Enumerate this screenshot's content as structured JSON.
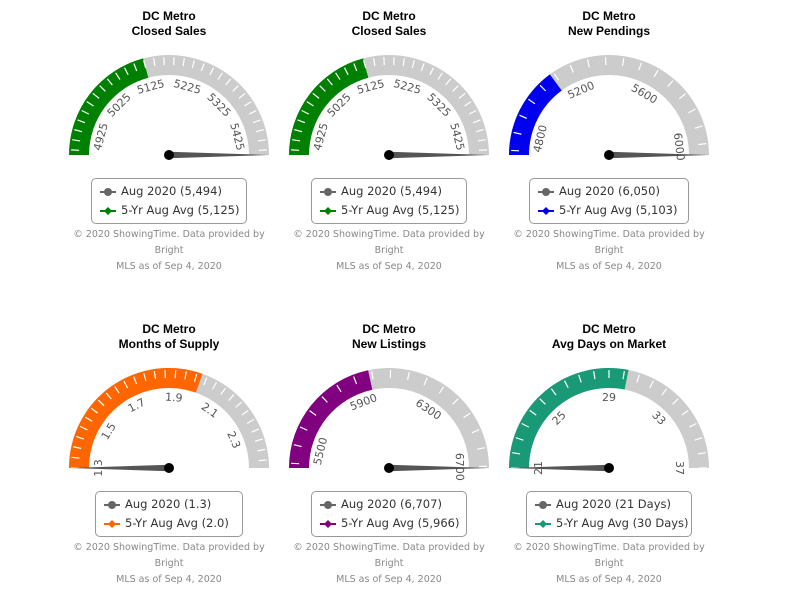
{
  "credit": {
    "line1": "© 2020 ShowingTime. Data provided by Bright",
    "line2": "MLS as of Sep 4, 2020"
  },
  "chart_data": [
    {
      "type": "gauge",
      "title_line1": "DC Metro",
      "title_line2": "Closed Sales",
      "min": 4875,
      "max": 5475,
      "ticks": [
        "4925",
        "5025",
        "5125",
        "5225",
        "5325",
        "5425"
      ],
      "tick_values": [
        4925,
        5025,
        5125,
        5225,
        5325,
        5425
      ],
      "needle_value": 5494,
      "band_value": 5125,
      "band_color": "#008000",
      "legend": [
        "Aug 2020 (5,494)",
        "5-Yr Aug Avg (5,125)"
      ]
    },
    {
      "type": "gauge",
      "title_line1": "DC Metro",
      "title_line2": "Closed Sales",
      "min": 4875,
      "max": 5475,
      "ticks": [
        "4925",
        "5025",
        "5125",
        "5225",
        "5325",
        "5425"
      ],
      "tick_values": [
        4925,
        5025,
        5125,
        5225,
        5325,
        5425
      ],
      "needle_value": 5494,
      "band_value": 5125,
      "band_color": "#008000",
      "legend": [
        "Aug 2020 (5,494)",
        "5-Yr Aug Avg (5,125)"
      ]
    },
    {
      "type": "gauge",
      "title_line1": "DC Metro",
      "title_line2": "New Pendings",
      "min": 4700,
      "max": 6050,
      "ticks": [
        "4800",
        "5200",
        "5600",
        "6000"
      ],
      "tick_values": [
        4800,
        5200,
        5600,
        6000
      ],
      "needle_value": 6050,
      "band_value": 5103,
      "band_color": "#0000ee",
      "legend": [
        "Aug 2020 (6,050)",
        "5-Yr Aug Avg (5,103)"
      ]
    },
    {
      "type": "gauge",
      "title_line1": "DC Metro",
      "title_line2": "Months of Supply",
      "min": 1.3,
      "max": 2.45,
      "ticks": [
        "1.3",
        "1.5",
        "1.7",
        "1.9",
        "2.1",
        "2.3"
      ],
      "tick_values": [
        1.3,
        1.5,
        1.7,
        1.9,
        2.1,
        2.3
      ],
      "needle_value": 1.3,
      "band_value": 2.0,
      "band_color": "#ff6600",
      "legend": [
        "Aug 2020 (1.3)",
        "5-Yr Aug Avg (2.0)"
      ]
    },
    {
      "type": "gauge",
      "title_line1": "DC Metro",
      "title_line2": "New Listings",
      "min": 5400,
      "max": 6707,
      "ticks": [
        "5500",
        "5900",
        "6300",
        "6700"
      ],
      "tick_values": [
        5500,
        5900,
        6300,
        6700
      ],
      "needle_value": 6707,
      "band_value": 5966,
      "band_color": "#800080",
      "legend": [
        "Aug 2020 (6,707)",
        "5-Yr Aug Avg (5,966)"
      ]
    },
    {
      "type": "gauge",
      "title_line1": "DC Metro",
      "title_line2": "Avg Days on Market",
      "min": 21,
      "max": 37,
      "ticks": [
        "21",
        "25",
        "29",
        "33",
        "37"
      ],
      "tick_values": [
        21,
        25,
        29,
        33,
        37
      ],
      "needle_value": 21,
      "band_value": 30,
      "band_color": "#1a9977",
      "legend": [
        "Aug 2020 (21 Days)",
        "5-Yr Aug Avg (30 Days)"
      ]
    }
  ]
}
